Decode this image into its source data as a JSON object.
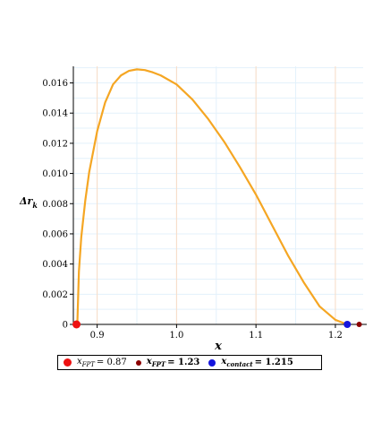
{
  "chart_data": {
    "type": "line",
    "x_label": "x",
    "y_label_main": "Δr",
    "y_label_sub": "k",
    "xlim": [
      0.87,
      1.235
    ],
    "ylim": [
      0,
      0.0171
    ],
    "x_ticks": [
      0.9,
      1.0,
      1.1,
      1.2
    ],
    "x_tick_labels": [
      "0.9",
      "1.0",
      "1.1",
      "1.2"
    ],
    "y_ticks": [
      0,
      0.002,
      0.004,
      0.006,
      0.008,
      0.01,
      0.012,
      0.014,
      0.016
    ],
    "y_tick_labels": [
      "0",
      "0.002",
      "0.004",
      "0.006",
      "0.008",
      "0.010",
      "0.012",
      "0.014",
      "0.016"
    ],
    "grid": true,
    "series": [
      {
        "color": "#f5a623",
        "x": [
          0.875,
          0.877,
          0.88,
          0.885,
          0.89,
          0.9,
          0.91,
          0.92,
          0.93,
          0.94,
          0.95,
          0.96,
          0.97,
          0.98,
          1.0,
          1.02,
          1.04,
          1.06,
          1.08,
          1.1,
          1.12,
          1.14,
          1.16,
          1.18,
          1.2,
          1.215
        ],
        "y": [
          0,
          0.0035,
          0.0058,
          0.0082,
          0.0101,
          0.0128,
          0.0147,
          0.0159,
          0.0165,
          0.0168,
          0.0169,
          0.01685,
          0.0167,
          0.0165,
          0.0159,
          0.0149,
          0.0136,
          0.0121,
          0.0104,
          0.0086,
          0.0066,
          0.0046,
          0.0028,
          0.0012,
          0.0003,
          0
        ]
      }
    ],
    "points": [
      {
        "x": 0.874,
        "y": 0,
        "color": "#ee1111",
        "label": "x_FPT = 0.87"
      },
      {
        "x": 1.23,
        "y": 0,
        "color": "#8b0000",
        "label": "x_FPT = 1.23"
      },
      {
        "x": 1.215,
        "y": 0,
        "color": "#1515dd",
        "label": "x_contact = 1.215"
      }
    ],
    "legend": [
      {
        "color": "#ee1111",
        "base": "x",
        "sub": "FPT",
        "text": "= 0.87",
        "bold": false
      },
      {
        "color": "#8b0000",
        "base": "x",
        "sub": "FPT",
        "text": "= 1.23",
        "bold": true
      },
      {
        "color": "#1515dd",
        "base": "x",
        "sub": "contact",
        "text": "= 1.215",
        "bold": true
      }
    ],
    "legend_position": "bottom"
  }
}
